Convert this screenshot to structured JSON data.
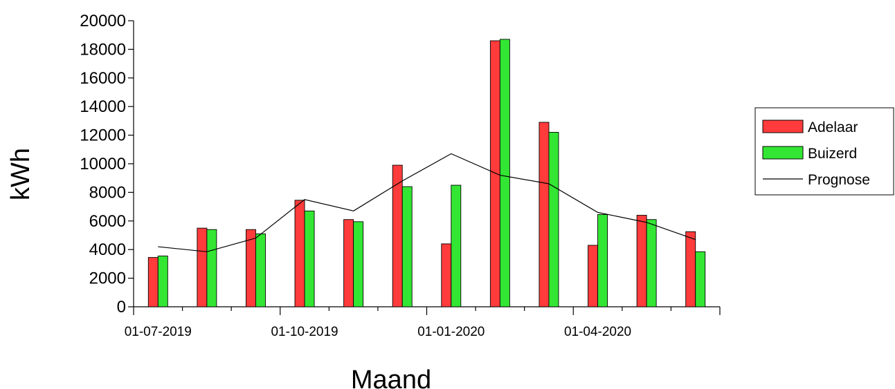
{
  "chart_data": {
    "type": "bar",
    "xlabel": "Maand",
    "ylabel": "kWh",
    "ylim": [
      0,
      20000
    ],
    "yticks": [
      0,
      2000,
      4000,
      6000,
      8000,
      10000,
      12000,
      14000,
      16000,
      18000,
      20000
    ],
    "xticks": [
      "01-07-2019",
      "01-10-2019",
      "01-01-2020",
      "01-04-2020"
    ],
    "categories": [
      "2019-07",
      "2019-08",
      "2019-09",
      "2019-10",
      "2019-11",
      "2019-12",
      "2020-01",
      "2020-02",
      "2020-03",
      "2020-04",
      "2020-05",
      "2020-06"
    ],
    "series": [
      {
        "name": "Adelaar",
        "kind": "bar",
        "color": "#ff3b3b",
        "values": [
          3450,
          5500,
          5400,
          7450,
          6100,
          9900,
          4400,
          18600,
          12900,
          4300,
          6400,
          5250
        ]
      },
      {
        "name": "Buizerd",
        "kind": "bar",
        "color": "#33e633",
        "values": [
          3550,
          5400,
          5100,
          6700,
          5950,
          8400,
          8500,
          18700,
          12200,
          6450,
          6100,
          3850
        ]
      },
      {
        "name": "Prognose",
        "kind": "line",
        "color": "#000000",
        "values": [
          4200,
          3850,
          4800,
          7500,
          6700,
          8800,
          10700,
          9200,
          8600,
          6600,
          5900,
          4700
        ]
      }
    ],
    "legend_position": "right",
    "grid": false
  }
}
